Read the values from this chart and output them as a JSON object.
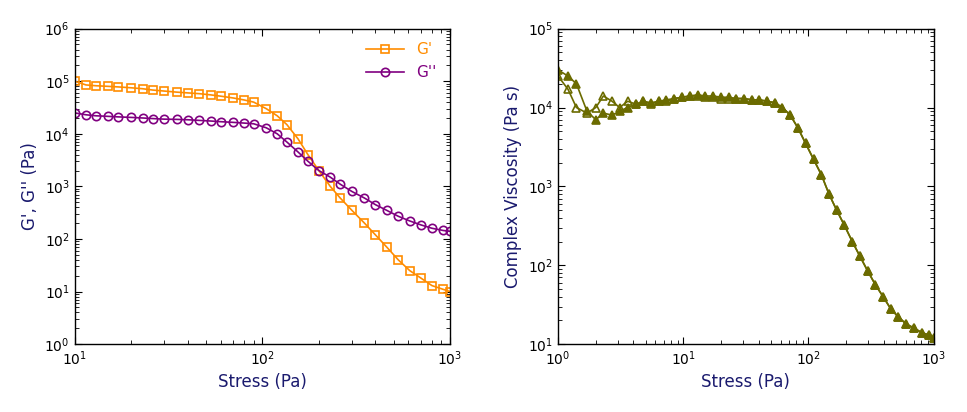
{
  "left_plot": {
    "xlabel": "Stress (Pa)",
    "ylabel": "G', G'' (Pa)",
    "xlim": [
      10,
      1000
    ],
    "ylim": [
      1,
      1000000
    ],
    "G_prime": {
      "stress": [
        10,
        11.5,
        13,
        15,
        17,
        20,
        23,
        26,
        30,
        35,
        40,
        46,
        53,
        60,
        70,
        80,
        90,
        105,
        120,
        135,
        155,
        175,
        200,
        230,
        260,
        300,
        350,
        400,
        460,
        530,
        610,
        700,
        800,
        920,
        1000
      ],
      "values": [
        100000,
        85000,
        82000,
        80000,
        78000,
        75000,
        72000,
        68000,
        65000,
        62000,
        60000,
        58000,
        55000,
        52000,
        48000,
        44000,
        40000,
        30000,
        22000,
        15000,
        8000,
        4000,
        2000,
        1000,
        600,
        350,
        200,
        120,
        70,
        40,
        25,
        18,
        13,
        11,
        10
      ],
      "color": "#FF8C00",
      "marker": "s",
      "label": "G'"
    },
    "G_double_prime": {
      "stress": [
        10,
        11.5,
        13,
        15,
        17,
        20,
        23,
        26,
        30,
        35,
        40,
        46,
        53,
        60,
        70,
        80,
        90,
        105,
        120,
        135,
        155,
        175,
        200,
        230,
        260,
        300,
        350,
        400,
        460,
        530,
        610,
        700,
        800,
        920,
        1000
      ],
      "values": [
        25000,
        23000,
        22000,
        21500,
        21000,
        20500,
        20000,
        19500,
        19000,
        18800,
        18500,
        18000,
        17500,
        17000,
        16500,
        16000,
        15500,
        13000,
        10000,
        7000,
        4500,
        3000,
        2000,
        1500,
        1100,
        800,
        600,
        450,
        350,
        270,
        220,
        185,
        160,
        145,
        140
      ],
      "color": "#800080",
      "marker": "o",
      "label": "G''"
    }
  },
  "right_plot": {
    "xlabel": "Stress (Pa)",
    "ylabel": "Complex Viscosity (Pa s)",
    "xlim": [
      1,
      1000
    ],
    "ylim": [
      10,
      100000
    ],
    "series_open": {
      "stress": [
        1,
        1.2,
        1.4,
        1.7,
        2.0,
        2.3,
        2.7,
        3.1,
        3.6,
        4.2,
        4.8,
        5.5,
        6.4,
        7.3,
        8.5,
        9.8,
        11.3,
        13,
        15,
        17.4,
        20,
        23,
        26.5,
        30.6,
        35.2,
        40.6,
        46.8,
        54,
        62,
        71.6,
        82.5,
        95,
        110,
        127,
        146,
        168,
        194,
        224,
        258,
        297,
        342,
        395,
        455,
        524,
        605,
        697,
        804,
        927,
        1000
      ],
      "values": [
        25000,
        17000,
        10000,
        8500,
        10000,
        14000,
        12000,
        10000,
        12000,
        11000,
        12000,
        11000,
        12000,
        12000,
        13000,
        13500,
        14000,
        14000,
        13500,
        13500,
        13000,
        13000,
        13000,
        13000,
        12500,
        12500,
        12000,
        11500,
        10000,
        8000,
        5500,
        3500,
        2200,
        1400,
        800,
        500,
        320,
        200,
        130,
        85,
        57,
        40,
        28,
        22,
        18,
        16,
        14,
        13,
        12
      ],
      "color": "#6b6b00",
      "marker": "^"
    },
    "series_filled": {
      "stress": [
        1,
        1.2,
        1.4,
        1.7,
        2.0,
        2.3,
        2.7,
        3.1,
        3.6,
        4.2,
        4.8,
        5.5,
        6.4,
        7.3,
        8.5,
        9.8,
        11.3,
        13,
        15,
        17.4,
        20,
        23,
        26.5,
        30.6,
        35.2,
        40.6,
        46.8,
        54,
        62,
        71.6,
        82.5,
        95,
        110,
        127,
        146,
        168,
        194,
        224,
        258,
        297,
        342,
        395,
        455,
        524,
        605,
        697,
        804,
        927,
        1000
      ],
      "values": [
        30000,
        25000,
        20000,
        9000,
        7000,
        8500,
        8000,
        9000,
        10000,
        11000,
        12000,
        11500,
        12000,
        12500,
        13000,
        13500,
        14000,
        14500,
        14000,
        14000,
        13500,
        13500,
        13000,
        13000,
        12500,
        12500,
        12000,
        11500,
        10000,
        8000,
        5500,
        3500,
        2200,
        1400,
        800,
        500,
        320,
        200,
        130,
        85,
        57,
        40,
        28,
        22,
        18,
        16,
        14,
        13,
        12
      ],
      "color": "#6b6b00",
      "marker": "^"
    }
  },
  "label_color": "#1a1a6e",
  "figure_bg": "#ffffff",
  "legend_G_prime_color": "#FF8C00",
  "legend_G_double_prime_color": "#800080"
}
